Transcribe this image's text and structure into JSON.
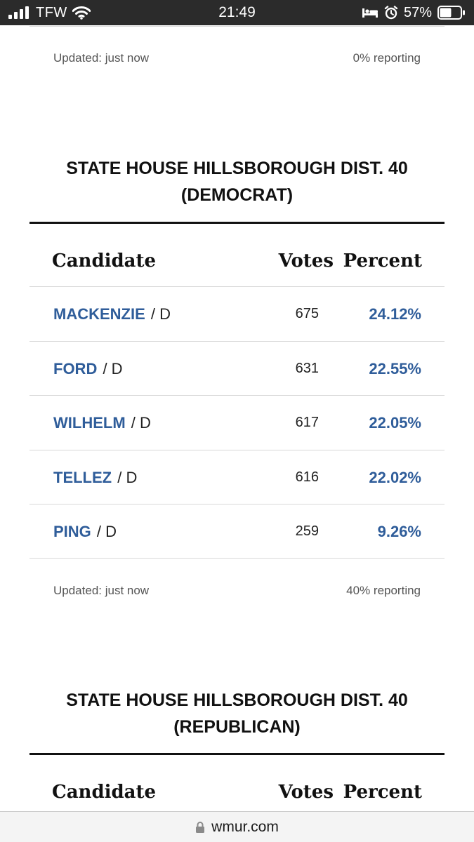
{
  "status_bar": {
    "carrier": "TFW",
    "time": "21:49",
    "battery_percent": "57%",
    "battery_level": 0.57
  },
  "previous_race_footer": {
    "updated": "Updated: just now",
    "reporting": "0% reporting"
  },
  "race_democrat": {
    "title_line1": "STATE HOUSE HILLSBOROUGH DIST. 40",
    "title_line2": "(DEMOCRAT)",
    "columns": {
      "candidate": "Candidate",
      "votes": "Votes",
      "percent": "Percent"
    },
    "rows": [
      {
        "name": "MACKENZIE",
        "party": "/ D",
        "votes": "675",
        "percent": "24.12%"
      },
      {
        "name": "FORD",
        "party": "/ D",
        "votes": "631",
        "percent": "22.55%"
      },
      {
        "name": "WILHELM",
        "party": "/ D",
        "votes": "617",
        "percent": "22.05%"
      },
      {
        "name": "TELLEZ",
        "party": "/ D",
        "votes": "616",
        "percent": "22.02%"
      },
      {
        "name": "PING",
        "party": "/ D",
        "votes": "259",
        "percent": "9.26%"
      }
    ],
    "footer": {
      "updated": "Updated: just now",
      "reporting": "40% reporting"
    }
  },
  "race_republican": {
    "title_line1": "STATE HOUSE HILLSBOROUGH DIST. 40",
    "title_line2": "(REPUBLICAN)",
    "columns": {
      "candidate": "Candidate",
      "votes": "Votes",
      "percent": "Percent"
    }
  },
  "address_bar": {
    "domain": "wmur.com",
    "icon": "lock-icon"
  },
  "colors": {
    "link_blue": "#2f5d9a",
    "status_bar_bg": "#2b2b2b",
    "rule": "#d8d8d8"
  }
}
